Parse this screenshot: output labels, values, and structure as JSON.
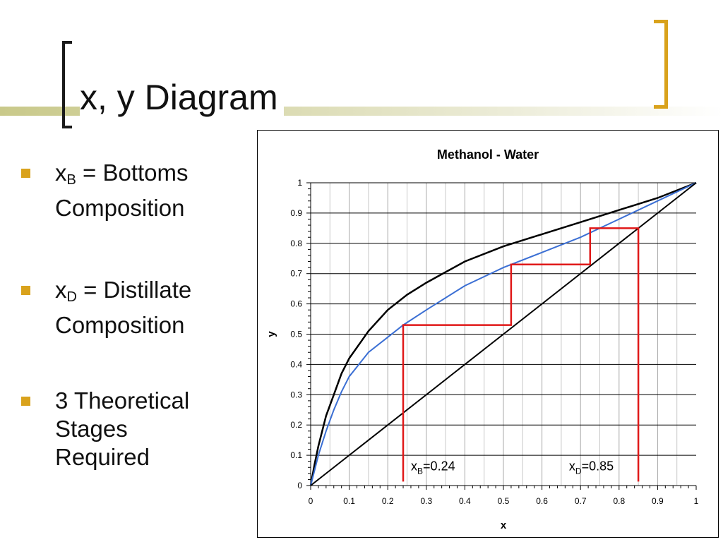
{
  "slide": {
    "title": "x, y Diagram",
    "bullets": [
      {
        "main": "x",
        "sub": "B",
        "rest_line1": " = Bottoms",
        "line2": "Composition"
      },
      {
        "main": "x",
        "sub": "D",
        "rest_line1": " = Distillate",
        "line2": "Composition"
      },
      {
        "line1": "3 Theoretical",
        "line2": "Stages",
        "line3": "Required"
      }
    ],
    "colors": {
      "accent": "#d9a21c",
      "title_bar": "#c9c98a"
    }
  },
  "chart_data": {
    "type": "line",
    "title": "Methanol - Water",
    "xlabel": "x",
    "ylabel": "y",
    "xlim": [
      0,
      1
    ],
    "ylim": [
      0,
      1
    ],
    "xticks": [
      "0",
      "0.1",
      "0.2",
      "0.3",
      "0.4",
      "0.5",
      "0.6",
      "0.7",
      "0.8",
      "0.9",
      "1"
    ],
    "yticks": [
      "0",
      "0.1",
      "0.2",
      "0.3",
      "0.4",
      "0.5",
      "0.6",
      "0.7",
      "0.8",
      "0.9",
      "1"
    ],
    "grid": true,
    "series": [
      {
        "role": "equilibrium",
        "color": "#000000",
        "x": [
          0,
          0.01,
          0.02,
          0.04,
          0.06,
          0.08,
          0.1,
          0.15,
          0.2,
          0.25,
          0.3,
          0.4,
          0.5,
          0.6,
          0.7,
          0.8,
          0.9,
          1.0
        ],
        "y": [
          0,
          0.07,
          0.13,
          0.23,
          0.3,
          0.37,
          0.42,
          0.51,
          0.58,
          0.63,
          0.67,
          0.74,
          0.79,
          0.83,
          0.87,
          0.91,
          0.95,
          1.0
        ]
      },
      {
        "role": "operating",
        "color": "#3b6fd4",
        "x": [
          0,
          0.01,
          0.02,
          0.04,
          0.06,
          0.08,
          0.1,
          0.15,
          0.2,
          0.24,
          0.3,
          0.4,
          0.5,
          0.6,
          0.7,
          0.8,
          0.9,
          1.0
        ],
        "y": [
          0,
          0.05,
          0.1,
          0.18,
          0.25,
          0.31,
          0.36,
          0.44,
          0.49,
          0.53,
          0.58,
          0.66,
          0.72,
          0.77,
          0.82,
          0.88,
          0.94,
          1.0
        ]
      },
      {
        "role": "diagonal",
        "color": "#000000",
        "x": [
          0,
          1
        ],
        "y": [
          0,
          1
        ]
      },
      {
        "role": "stages",
        "color": "#e01818",
        "x": [
          0.24,
          0.24,
          0.52,
          0.52,
          0.725,
          0.725,
          0.85,
          0.85
        ],
        "y": [
          0.013,
          0.53,
          0.53,
          0.73,
          0.73,
          0.85,
          0.85,
          0.013
        ]
      }
    ],
    "annotations": [
      {
        "main": "x",
        "sub": "B",
        "rest": "=0.24",
        "x": 0.24,
        "y": 0.05
      },
      {
        "main": "x",
        "sub": "D",
        "rest": "=0.85",
        "x": 0.65,
        "y": 0.05
      }
    ]
  }
}
